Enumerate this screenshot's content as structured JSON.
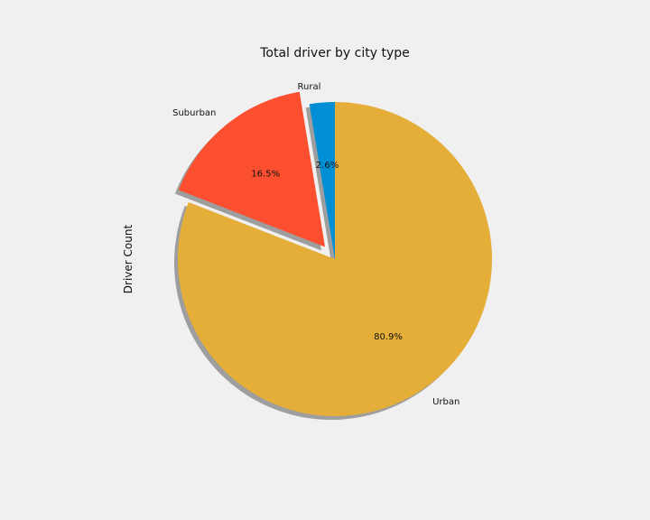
{
  "chart_data": {
    "type": "pie",
    "title": "Total driver by city type",
    "ylabel": "Driver Count",
    "slices": [
      {
        "label": "Rural",
        "value": 2.6,
        "pct_label": "2.6%",
        "color": "#008fd5",
        "explode": 0
      },
      {
        "label": "Suburban",
        "value": 16.5,
        "pct_label": "16.5%",
        "color": "#fc4f30",
        "explode": 0.1
      },
      {
        "label": "Urban",
        "value": 80.9,
        "pct_label": "80.9%",
        "color": "#e5ae38",
        "explode": 0
      }
    ],
    "start_angle_deg": 90,
    "direction": "counterclockwise",
    "shadow": true,
    "background_color": "#f0f0f0"
  }
}
